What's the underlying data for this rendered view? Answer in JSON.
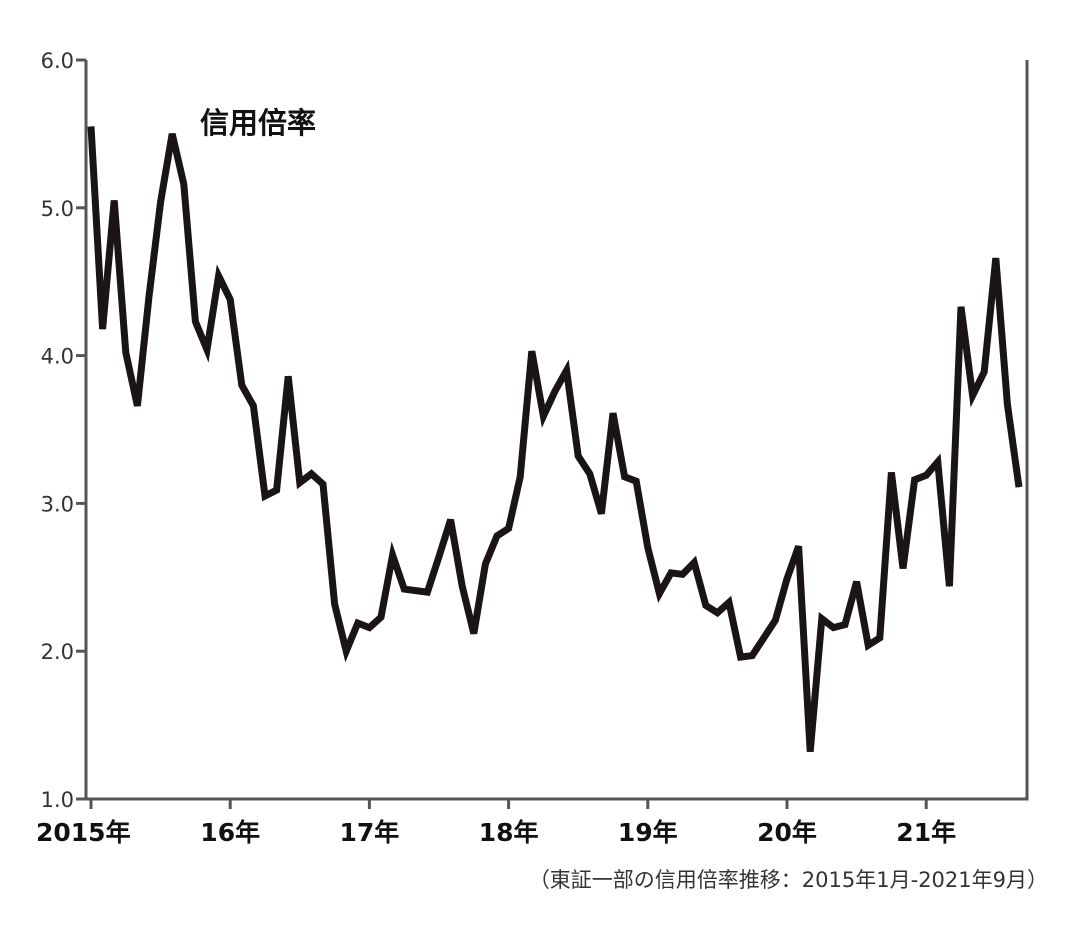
{
  "chart_data": {
    "type": "line",
    "title": "",
    "xlabel": "",
    "ylabel": "",
    "ylim": [
      1.0,
      6.0
    ],
    "y_ticks": [
      "1.0",
      "2.0",
      "3.0",
      "4.0",
      "5.0",
      "6.0"
    ],
    "x_ticks": [
      "2015年",
      "16年",
      "17年",
      "18年",
      "19年",
      "20年",
      "21年"
    ],
    "grid": false,
    "line_color": "#1a1414",
    "axis_color": "#555555",
    "series": [
      {
        "name": "信用倍率",
        "start": "2015-01",
        "end": "2021-09",
        "values": [
          5.55,
          4.18,
          5.05,
          4.02,
          3.66,
          4.4,
          5.04,
          5.5,
          5.16,
          4.23,
          4.04,
          4.54,
          4.38,
          3.8,
          3.66,
          3.05,
          3.09,
          3.86,
          3.14,
          3.2,
          3.13,
          2.32,
          2.0,
          2.19,
          2.16,
          2.23,
          2.65,
          2.42,
          2.41,
          2.4,
          2.64,
          2.89,
          2.44,
          2.12,
          2.59,
          2.78,
          2.83,
          3.18,
          4.03,
          3.59,
          3.76,
          3.9,
          3.32,
          3.2,
          2.93,
          3.61,
          3.18,
          3.15,
          2.7,
          2.39,
          2.53,
          2.52,
          2.6,
          2.31,
          2.26,
          2.33,
          1.96,
          1.97,
          2.09,
          2.21,
          2.49,
          2.71,
          1.32,
          2.22,
          2.16,
          2.18,
          2.47,
          2.04,
          2.09,
          3.21,
          2.56,
          3.16,
          3.19,
          3.28,
          2.44,
          4.33,
          3.73,
          3.89,
          4.66,
          3.67,
          3.11
        ]
      }
    ]
  },
  "source_note": "（東証一部の信用倍率推移：2015年1月-2021年9月）"
}
